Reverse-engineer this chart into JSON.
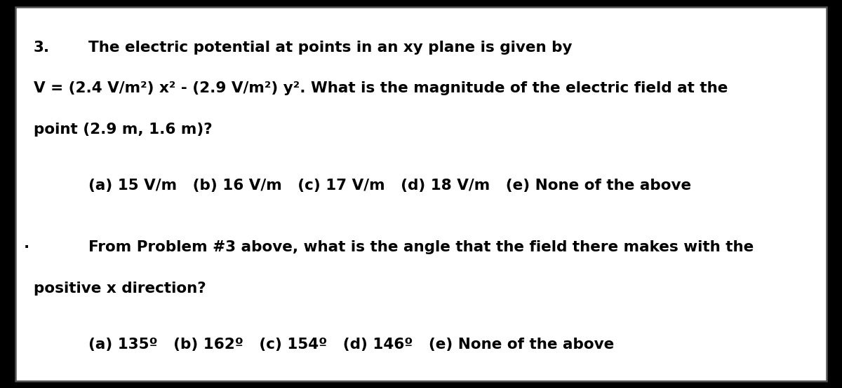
{
  "background_color": "#000000",
  "box_facecolor": "#ffffff",
  "box_edgecolor": "#555555",
  "text_color": "#000000",
  "problem_number": "3.",
  "line1_indent": "        The electric potential at points in an xy plane is given by",
  "line2": "V = (2.4 V/m²) x² - (2.9 V/m²) y². What is the magnitude of the electric field at the",
  "line3": "point (2.9 m, 1.6 m)?",
  "choices_q1": "        (a) 15 V/m   (b) 16 V/m   (c) 17 V/m   (d) 18 V/m   (e) None of the above",
  "q2_line1": "        From Problem #3 above, what is the angle that the field there makes with the",
  "q2_line2": "positive x direction?",
  "choices_q2": "        (a) 135º   (b) 162º   (c) 154º   (d) 146º   (e) None of the above",
  "font_size": 15.5,
  "bold_size": 15.5
}
